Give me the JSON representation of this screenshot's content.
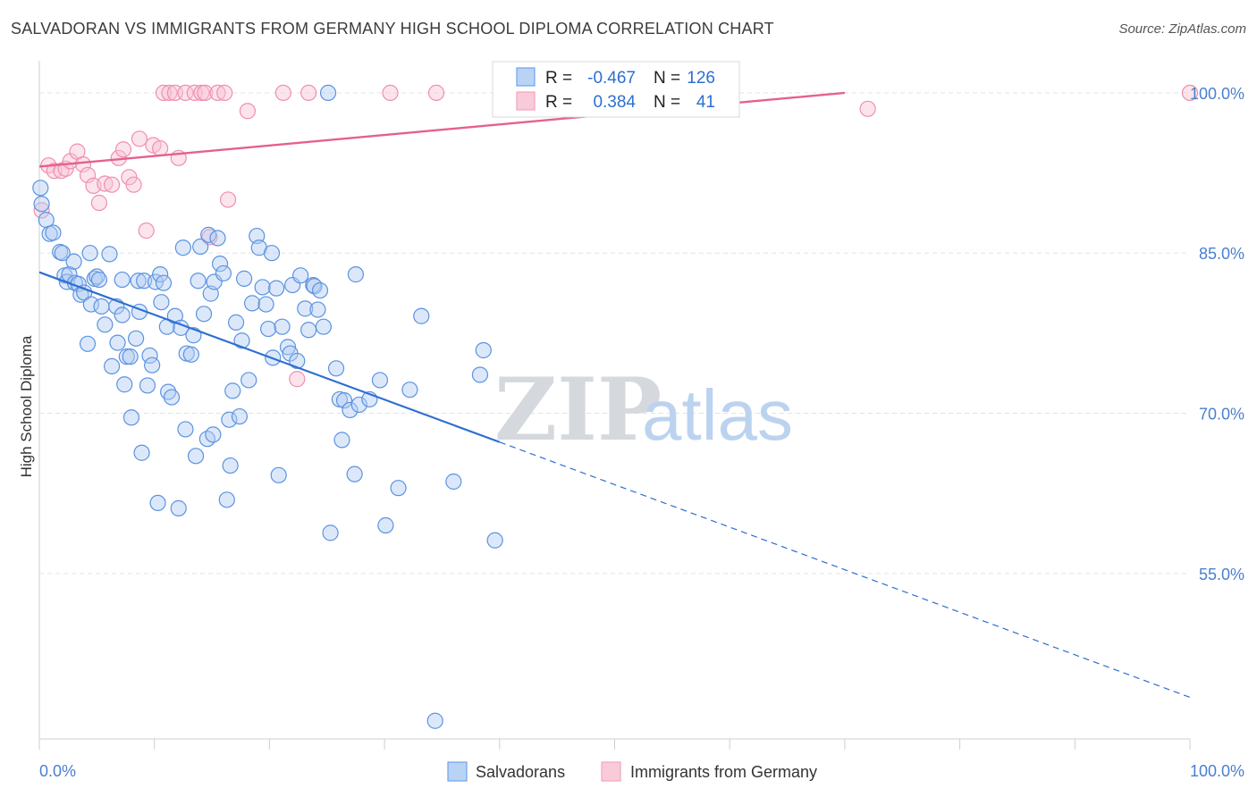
{
  "title": "SALVADORAN VS IMMIGRANTS FROM GERMANY HIGH SCHOOL DIPLOMA CORRELATION CHART",
  "source": "Source: ZipAtlas.com",
  "watermark": {
    "zip": "ZIP",
    "atlas": "atlas"
  },
  "colors": {
    "blue": "#6fa3e8",
    "blue_line": "#2c6fd1",
    "pink": "#f4a3bd",
    "pink_line": "#e5608f",
    "grid": "#e3e3e3"
  },
  "stats": {
    "r_label": "R =",
    "n_label": "N =",
    "rows": [
      {
        "series": "Salvadorans",
        "r": "-0.467",
        "n": "126"
      },
      {
        "series": "Immigrants from Germany",
        "r": "0.384",
        "n": "41"
      }
    ]
  },
  "chart_data": {
    "type": "scatter",
    "title": "SALVADORAN VS IMMIGRANTS FROM GERMANY HIGH SCHOOL DIPLOMA CORRELATION CHART",
    "xlabel": "",
    "ylabel": "High School Diploma",
    "xlim": [
      0,
      100
    ],
    "ylim": [
      38,
      102
    ],
    "x_tick_labels": [
      "0.0%",
      "100.0%"
    ],
    "y_ticks": [
      55,
      70,
      85,
      100
    ],
    "y_tick_labels": [
      "55.0%",
      "70.0%",
      "85.0%",
      "100.0%"
    ],
    "grid": true,
    "legend_position": "bottom-center",
    "series": [
      {
        "name": "Salvadorans",
        "color": "#6fa3e8",
        "trend": {
          "x0": 0,
          "y0": 83.2,
          "x1": 40,
          "y1": 67.3,
          "dash_to_x": 100,
          "dash_to_y": 43.4
        },
        "points": [
          [
            0.1,
            91.1
          ],
          [
            0.2,
            89.6
          ],
          [
            0.6,
            88.1
          ],
          [
            0.9,
            86.8
          ],
          [
            1.2,
            86.9
          ],
          [
            1.8,
            85.1
          ],
          [
            2.0,
            85.0
          ],
          [
            2.2,
            82.9
          ],
          [
            2.4,
            82.3
          ],
          [
            2.6,
            83.0
          ],
          [
            3.0,
            84.2
          ],
          [
            3.1,
            82.2
          ],
          [
            3.4,
            82.1
          ],
          [
            3.6,
            81.1
          ],
          [
            3.9,
            81.3
          ],
          [
            4.2,
            76.5
          ],
          [
            4.4,
            85.0
          ],
          [
            4.5,
            80.2
          ],
          [
            4.8,
            82.6
          ],
          [
            5.0,
            82.8
          ],
          [
            5.2,
            82.5
          ],
          [
            5.4,
            80.0
          ],
          [
            5.7,
            78.3
          ],
          [
            6.1,
            84.9
          ],
          [
            6.3,
            74.4
          ],
          [
            6.7,
            80.0
          ],
          [
            6.8,
            76.6
          ],
          [
            7.2,
            79.2
          ],
          [
            7.2,
            82.5
          ],
          [
            7.4,
            72.7
          ],
          [
            7.6,
            75.3
          ],
          [
            7.9,
            75.3
          ],
          [
            8.0,
            69.6
          ],
          [
            8.4,
            77.0
          ],
          [
            8.6,
            82.4
          ],
          [
            8.7,
            79.5
          ],
          [
            8.9,
            66.3
          ],
          [
            9.1,
            82.4
          ],
          [
            9.4,
            72.6
          ],
          [
            9.6,
            75.4
          ],
          [
            9.8,
            74.5
          ],
          [
            10.1,
            82.3
          ],
          [
            10.3,
            61.6
          ],
          [
            10.5,
            83.0
          ],
          [
            10.6,
            80.4
          ],
          [
            10.8,
            82.2
          ],
          [
            11.1,
            78.1
          ],
          [
            11.2,
            72.0
          ],
          [
            11.5,
            71.5
          ],
          [
            11.8,
            79.1
          ],
          [
            12.1,
            61.1
          ],
          [
            12.3,
            78.0
          ],
          [
            12.5,
            85.5
          ],
          [
            12.7,
            68.5
          ],
          [
            12.8,
            75.6
          ],
          [
            13.2,
            75.5
          ],
          [
            13.4,
            77.3
          ],
          [
            13.6,
            66.0
          ],
          [
            13.8,
            82.4
          ],
          [
            14.0,
            85.6
          ],
          [
            14.3,
            79.3
          ],
          [
            14.6,
            67.6
          ],
          [
            14.7,
            86.7
          ],
          [
            14.9,
            81.2
          ],
          [
            15.1,
            68.0
          ],
          [
            15.2,
            82.3
          ],
          [
            15.5,
            86.4
          ],
          [
            15.7,
            84.0
          ],
          [
            16.0,
            83.1
          ],
          [
            16.3,
            61.9
          ],
          [
            16.5,
            69.4
          ],
          [
            16.6,
            65.1
          ],
          [
            16.8,
            72.1
          ],
          [
            17.1,
            78.5
          ],
          [
            17.4,
            69.7
          ],
          [
            17.6,
            76.8
          ],
          [
            17.8,
            82.6
          ],
          [
            18.2,
            73.1
          ],
          [
            18.5,
            80.3
          ],
          [
            18.9,
            86.6
          ],
          [
            19.1,
            85.5
          ],
          [
            19.4,
            81.8
          ],
          [
            19.7,
            80.2
          ],
          [
            19.9,
            77.9
          ],
          [
            20.2,
            85.0
          ],
          [
            20.3,
            75.2
          ],
          [
            20.6,
            81.7
          ],
          [
            20.8,
            64.2
          ],
          [
            21.1,
            78.1
          ],
          [
            21.6,
            76.2
          ],
          [
            21.8,
            75.6
          ],
          [
            22.0,
            82.0
          ],
          [
            22.4,
            74.9
          ],
          [
            22.7,
            82.9
          ],
          [
            23.1,
            79.8
          ],
          [
            23.4,
            77.8
          ],
          [
            23.8,
            82.0
          ],
          [
            23.9,
            81.9
          ],
          [
            24.2,
            79.7
          ],
          [
            24.4,
            81.5
          ],
          [
            24.7,
            78.1
          ],
          [
            25.1,
            100.0
          ],
          [
            25.3,
            58.8
          ],
          [
            25.8,
            74.2
          ],
          [
            26.1,
            71.3
          ],
          [
            26.3,
            67.5
          ],
          [
            26.5,
            71.2
          ],
          [
            27.0,
            70.3
          ],
          [
            27.4,
            64.3
          ],
          [
            27.5,
            83.0
          ],
          [
            27.8,
            70.8
          ],
          [
            28.7,
            71.3
          ],
          [
            29.6,
            73.1
          ],
          [
            30.1,
            59.5
          ],
          [
            31.2,
            63.0
          ],
          [
            32.2,
            72.2
          ],
          [
            33.2,
            79.1
          ],
          [
            34.4,
            41.2
          ],
          [
            36.0,
            63.6
          ],
          [
            38.3,
            73.6
          ],
          [
            38.6,
            75.9
          ],
          [
            39.6,
            58.1
          ]
        ]
      },
      {
        "name": "Immigrants from Germany",
        "color": "#f4a3bd",
        "trend": {
          "x0": 0,
          "y0": 93.1,
          "x1": 70,
          "y1": 100.0
        },
        "points": [
          [
            0.2,
            89.0
          ],
          [
            0.8,
            93.2
          ],
          [
            1.3,
            92.7
          ],
          [
            1.9,
            92.7
          ],
          [
            2.3,
            92.9
          ],
          [
            2.7,
            93.6
          ],
          [
            3.3,
            94.5
          ],
          [
            3.8,
            93.3
          ],
          [
            4.2,
            92.3
          ],
          [
            4.7,
            91.3
          ],
          [
            5.2,
            89.7
          ],
          [
            5.7,
            91.5
          ],
          [
            6.3,
            91.4
          ],
          [
            6.9,
            93.9
          ],
          [
            7.3,
            94.7
          ],
          [
            7.8,
            92.1
          ],
          [
            8.2,
            91.4
          ],
          [
            8.7,
            95.7
          ],
          [
            9.3,
            87.1
          ],
          [
            9.9,
            95.1
          ],
          [
            10.5,
            94.8
          ],
          [
            10.8,
            100.0
          ],
          [
            11.3,
            100.0
          ],
          [
            11.8,
            100.0
          ],
          [
            12.1,
            93.9
          ],
          [
            12.7,
            100.0
          ],
          [
            13.5,
            100.0
          ],
          [
            14.1,
            100.0
          ],
          [
            14.4,
            100.0
          ],
          [
            14.8,
            86.5
          ],
          [
            15.5,
            100.0
          ],
          [
            16.1,
            100.0
          ],
          [
            16.4,
            90.0
          ],
          [
            18.1,
            98.3
          ],
          [
            21.2,
            100.0
          ],
          [
            22.4,
            73.2
          ],
          [
            23.4,
            100.0
          ],
          [
            30.5,
            100.0
          ],
          [
            34.5,
            100.0
          ],
          [
            72.0,
            98.5
          ],
          [
            100.0,
            100.0
          ]
        ]
      }
    ]
  }
}
